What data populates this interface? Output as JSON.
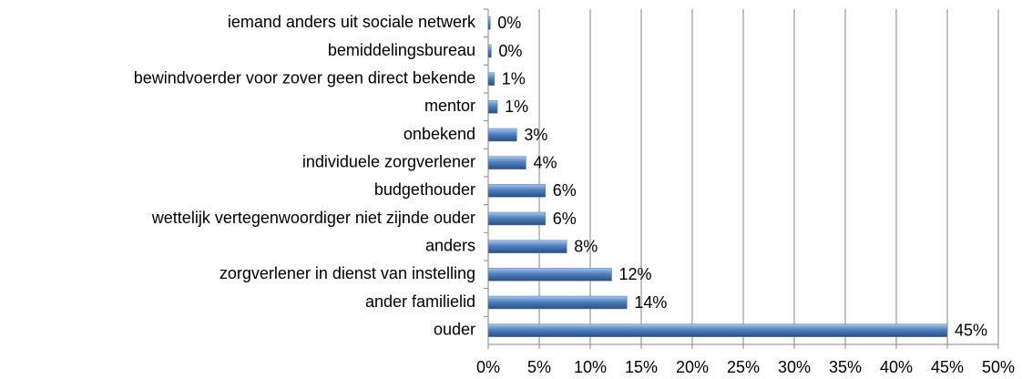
{
  "chart_data": {
    "type": "bar",
    "orientation": "horizontal",
    "categories": [
      "iemand anders uit sociale netwerk",
      "bemiddelingsbureau",
      "bewindvoerder voor zover geen direct bekende",
      "mentor",
      "onbekend",
      "individuele zorgverlener",
      "budgethouder",
      "wettelijk vertegenwoordiger niet zijnde ouder",
      "anders",
      "zorgverlener in dienst van instelling",
      "ander familielid",
      "ouder"
    ],
    "values": [
      0.2,
      0.3,
      0.6,
      0.9,
      2.8,
      3.7,
      5.6,
      5.6,
      7.7,
      12.1,
      13.6,
      45
    ],
    "value_labels": [
      "0%",
      "0%",
      "1%",
      "1%",
      "3%",
      "4%",
      "6%",
      "6%",
      "8%",
      "12%",
      "14%",
      "45%"
    ],
    "color": "#4f81bd",
    "xlim": [
      0,
      50
    ],
    "xticks": [
      {
        "value": 0,
        "label": "0%"
      },
      {
        "value": 5,
        "label": "5%"
      },
      {
        "value": 10,
        "label": "10%"
      },
      {
        "value": 15,
        "label": "15%"
      },
      {
        "value": 20,
        "label": "20%"
      },
      {
        "value": 25,
        "label": "25%"
      },
      {
        "value": 30,
        "label": "30%"
      },
      {
        "value": 35,
        "label": "35%"
      },
      {
        "value": 40,
        "label": "40%"
      },
      {
        "value": 45,
        "label": "45%"
      },
      {
        "value": 50,
        "label": "50%"
      }
    ],
    "grid": true
  }
}
